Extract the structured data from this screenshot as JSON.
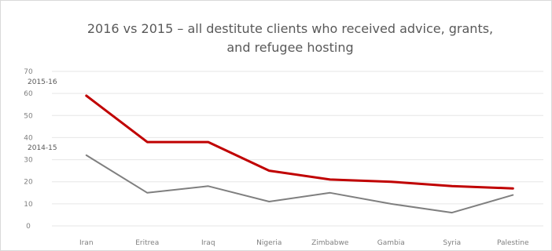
{
  "chart_data": {
    "type": "line",
    "title": "2016 vs 2015 – all destitute clients who received advice, grants, and refugee hosting",
    "title_lines": [
      "2016 vs 2015 – all destitute clients who received advice, grants,",
      "and refugee hosting"
    ],
    "categories": [
      "Iran",
      "Eritrea",
      "Iraq",
      "Nigeria",
      "Zimbabwe",
      "Gambia",
      "Syria",
      "Palestine"
    ],
    "ylim": [
      0,
      70
    ],
    "yticks": [
      0,
      10,
      20,
      30,
      40,
      50,
      60,
      70
    ],
    "grid": true,
    "legend": "none",
    "series": [
      {
        "name": "2015-16",
        "color": "#c00000",
        "values": [
          59,
          38,
          38,
          25,
          21,
          20,
          18,
          17
        ]
      },
      {
        "name": "2014-15",
        "color": "#7f7f7f",
        "values": [
          32,
          15,
          18,
          11,
          15,
          10,
          6,
          14
        ]
      }
    ]
  }
}
